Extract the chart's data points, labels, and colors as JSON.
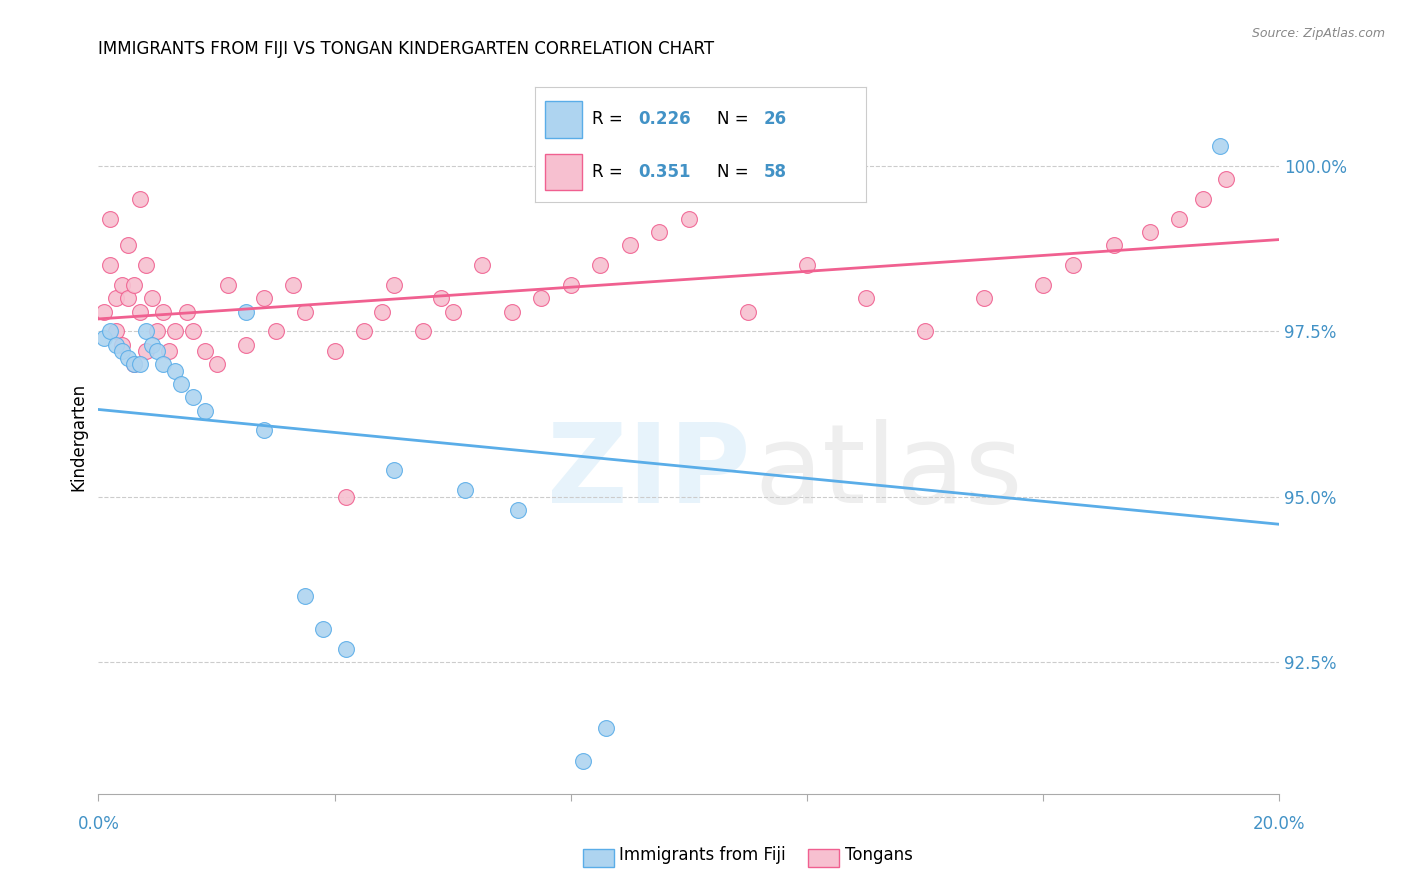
{
  "title": "IMMIGRANTS FROM FIJI VS TONGAN KINDERGARTEN CORRELATION CHART",
  "source": "Source: ZipAtlas.com",
  "ylabel": "Kindergarten",
  "fiji_R": "0.226",
  "fiji_N": "26",
  "tongan_R": "0.351",
  "tongan_N": "58",
  "fiji_color": "#aed4f0",
  "fiji_edge_color": "#5aade8",
  "tongan_color": "#f7c0d0",
  "tongan_edge_color": "#f06090",
  "fiji_line_color": "#5aade8",
  "tongan_line_color": "#f06090",
  "legend_label_fiji": "Immigrants from Fiji",
  "legend_label_tongan": "Tongans",
  "xlim": [
    0.0,
    0.2
  ],
  "ylim": [
    90.5,
    101.3
  ],
  "yticks": [
    92.5,
    95.0,
    97.5,
    100.0
  ],
  "xticks": [
    0.0,
    0.04,
    0.08,
    0.12,
    0.16,
    0.2
  ],
  "fiji_x": [
    0.001,
    0.002,
    0.003,
    0.004,
    0.005,
    0.006,
    0.007,
    0.008,
    0.009,
    0.01,
    0.011,
    0.013,
    0.014,
    0.016,
    0.018,
    0.025,
    0.028,
    0.035,
    0.038,
    0.042,
    0.05,
    0.062,
    0.071,
    0.082,
    0.086,
    0.19
  ],
  "fiji_y": [
    97.4,
    97.5,
    97.3,
    97.2,
    97.1,
    97.0,
    97.0,
    97.5,
    97.3,
    97.2,
    97.0,
    96.9,
    96.7,
    96.5,
    96.3,
    97.8,
    96.0,
    93.5,
    93.0,
    92.7,
    95.4,
    95.1,
    94.8,
    91.0,
    91.5,
    100.3
  ],
  "tongan_x": [
    0.001,
    0.002,
    0.002,
    0.003,
    0.003,
    0.004,
    0.004,
    0.005,
    0.005,
    0.006,
    0.006,
    0.007,
    0.007,
    0.008,
    0.008,
    0.009,
    0.01,
    0.011,
    0.012,
    0.013,
    0.015,
    0.016,
    0.018,
    0.02,
    0.022,
    0.025,
    0.028,
    0.03,
    0.033,
    0.035,
    0.04,
    0.042,
    0.045,
    0.048,
    0.05,
    0.055,
    0.058,
    0.06,
    0.065,
    0.07,
    0.075,
    0.08,
    0.085,
    0.09,
    0.095,
    0.1,
    0.11,
    0.12,
    0.13,
    0.14,
    0.15,
    0.16,
    0.165,
    0.172,
    0.178,
    0.183,
    0.187,
    0.191
  ],
  "tongan_y": [
    97.8,
    98.5,
    99.2,
    98.0,
    97.5,
    98.2,
    97.3,
    98.8,
    98.0,
    97.0,
    98.2,
    99.5,
    97.8,
    98.5,
    97.2,
    98.0,
    97.5,
    97.8,
    97.2,
    97.5,
    97.8,
    97.5,
    97.2,
    97.0,
    98.2,
    97.3,
    98.0,
    97.5,
    98.2,
    97.8,
    97.2,
    95.0,
    97.5,
    97.8,
    98.2,
    97.5,
    98.0,
    97.8,
    98.5,
    97.8,
    98.0,
    98.2,
    98.5,
    98.8,
    99.0,
    99.2,
    97.8,
    98.5,
    98.0,
    97.5,
    98.0,
    98.2,
    98.5,
    98.8,
    99.0,
    99.2,
    99.5,
    99.8
  ]
}
